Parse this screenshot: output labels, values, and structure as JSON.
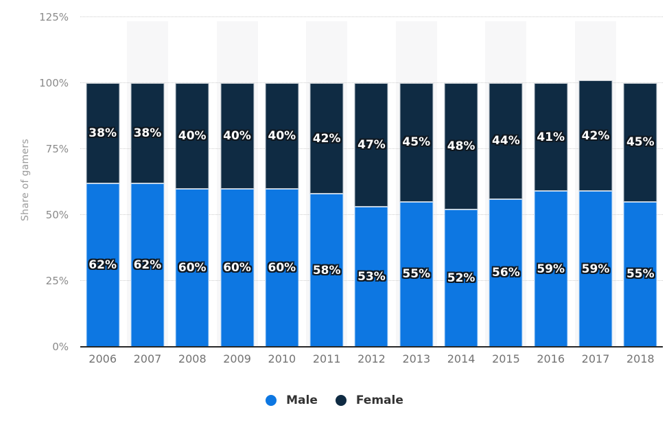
{
  "chart_data": {
    "type": "bar",
    "variant": "stacked-column",
    "title": "",
    "xlabel": "",
    "ylabel": "Share of gamers",
    "categories": [
      "2006",
      "2007",
      "2008",
      "2009",
      "2010",
      "2011",
      "2012",
      "2013",
      "2014",
      "2015",
      "2016",
      "2017",
      "2018"
    ],
    "series": [
      {
        "name": "Male",
        "color": "#0d77e2",
        "values": [
          62,
          62,
          60,
          60,
          60,
          58,
          53,
          55,
          52,
          56,
          59,
          59,
          55
        ]
      },
      {
        "name": "Female",
        "color": "#0f2b43",
        "values": [
          38,
          38,
          40,
          40,
          40,
          42,
          47,
          45,
          48,
          44,
          41,
          42,
          45
        ]
      }
    ],
    "data_label_suffix": "%",
    "ylim": [
      0,
      125
    ],
    "y_ticks": [
      {
        "label": "0%",
        "value": 0
      },
      {
        "label": "25%",
        "value": 25
      },
      {
        "label": "50%",
        "value": 50
      },
      {
        "label": "75%",
        "value": 75
      },
      {
        "label": "100%",
        "value": 100
      },
      {
        "label": "125%",
        "value": 125
      }
    ],
    "grid": "horizontal-dotted",
    "alternating_category_bands": true,
    "legend_position": "bottom"
  },
  "style": {
    "male_color": "#0d77e2",
    "female_color": "#0f2b43",
    "band_color": "#f7f7f8",
    "gridline_color": "#cccccc",
    "axis_line_color": "#262626",
    "y_tick_color": "#8a8a8a",
    "x_tick_color": "#737373",
    "y_title_color": "#9a9a9a",
    "legend_text_color": "#333333",
    "data_label_color": "#ffffff",
    "data_label_outline": "#101820"
  }
}
